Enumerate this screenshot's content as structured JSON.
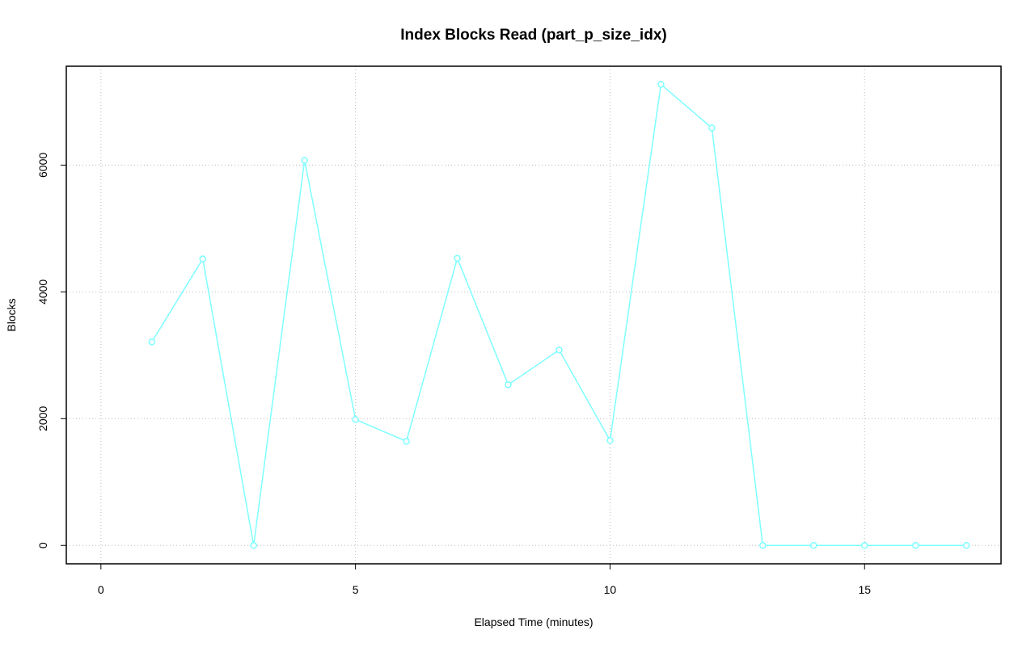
{
  "chart_data": {
    "type": "line",
    "title": "Index Blocks Read (part_p_size_idx)",
    "x_label": "Elapsed Time (minutes)",
    "y_label": "Blocks",
    "x": [
      1,
      2,
      3,
      4,
      5,
      6,
      7,
      8,
      9,
      10,
      11,
      12,
      13,
      14,
      15,
      16,
      17
    ],
    "series": [
      {
        "color": "#7fffff",
        "values": [
          3210,
          4520,
          0,
          6076,
          1987,
          1643,
          4530,
          2535,
          3083,
          1656,
          7274,
          6586,
          0,
          0,
          0,
          0,
          0
        ]
      }
    ],
    "xlim": [
      -0.68,
      17.68
    ],
    "ylim": [
      -290,
      7560
    ],
    "xticks": [
      0,
      5,
      10,
      15
    ],
    "yticks": [
      0,
      2000,
      4000,
      6000
    ],
    "grid": true
  }
}
